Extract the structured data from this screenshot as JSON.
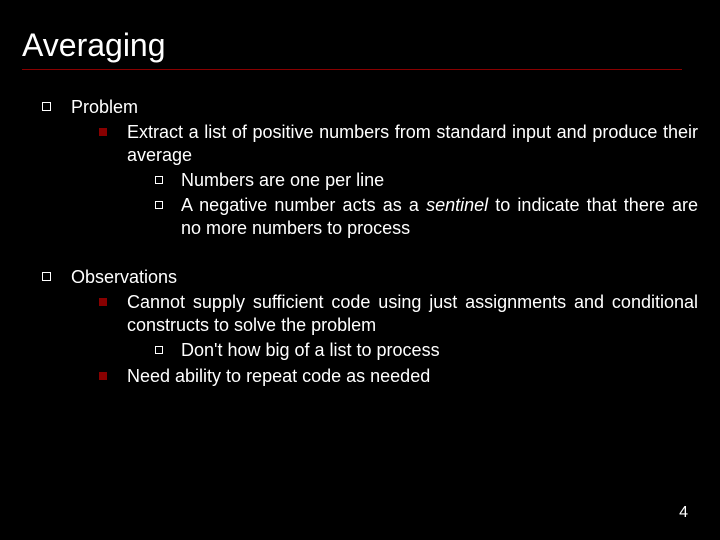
{
  "colors": {
    "background": "#000000",
    "text": "#ffffff",
    "accent": "#880000"
  },
  "title": "Averaging",
  "page_number": "4",
  "sections": [
    {
      "heading": "Problem",
      "items": [
        {
          "text": "Extract a list of positive numbers from standard input and produce their average",
          "subitems": [
            {
              "text": "Numbers are one per line"
            },
            {
              "pre": "A negative number acts as a ",
              "italic": "sentinel",
              "post": " to indicate that there are no more numbers to process"
            }
          ]
        }
      ]
    },
    {
      "heading": "Observations",
      "items": [
        {
          "text": "Cannot supply sufficient code using just assignments and conditional constructs to solve the problem",
          "subitems": [
            {
              "text": "Don't how big of a list to process"
            }
          ]
        },
        {
          "text": "Need ability to repeat code as needed",
          "subitems": []
        }
      ]
    }
  ]
}
